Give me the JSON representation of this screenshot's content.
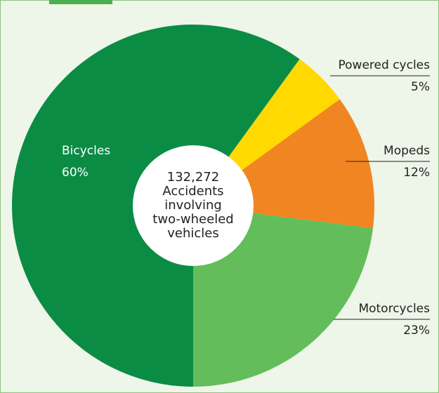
{
  "chart_data": {
    "type": "pie",
    "categories": [
      "Bicycles",
      "Powered cycles",
      "Mopeds",
      "Motorcycles"
    ],
    "values": [
      60,
      5,
      12,
      23
    ],
    "value_labels": [
      "60%",
      "5%",
      "12%",
      "23%"
    ],
    "colors": [
      "#0b8c45",
      "#ffd900",
      "#f18522",
      "#63bd5b"
    ],
    "center_text": [
      "132,272",
      "Accidents",
      "involving",
      "two-wheeled",
      "vehicles"
    ]
  }
}
